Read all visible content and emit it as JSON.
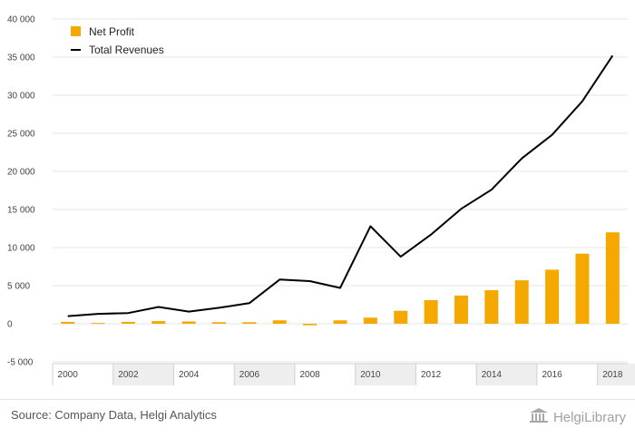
{
  "chart_data": {
    "type": "bar+line",
    "categories": [
      "2000",
      "2001",
      "2002",
      "2003",
      "2004",
      "2005",
      "2006",
      "2007",
      "2008",
      "2009",
      "2010",
      "2011",
      "2012",
      "2013",
      "2014",
      "2015",
      "2016",
      "2017",
      "2018"
    ],
    "x_tick_labels": [
      "2000",
      "2002",
      "2004",
      "2006",
      "2008",
      "2010",
      "2012",
      "2014",
      "2016",
      "2018"
    ],
    "y_ticks": [
      -5000,
      0,
      5000,
      10000,
      15000,
      20000,
      25000,
      30000,
      35000,
      40000
    ],
    "y_tick_labels": [
      "-5 000",
      "0",
      "5 000",
      "10 000",
      "15 000",
      "20 000",
      "25 000",
      "30 000",
      "35 000",
      "40 000"
    ],
    "ylim": [
      -5000,
      40000
    ],
    "grid": true,
    "legend_position": "top-left",
    "series": [
      {
        "name": "Net Profit",
        "type": "bar",
        "color": "#f5a900",
        "values": [
          250,
          100,
          250,
          350,
          300,
          200,
          200,
          450,
          -200,
          450,
          800,
          1700,
          3100,
          3700,
          4400,
          5700,
          7100,
          9200,
          12000
        ]
      },
      {
        "name": "Total Revenues",
        "type": "line",
        "color": "#000000",
        "values": [
          1000,
          1300,
          1400,
          2200,
          1600,
          2100,
          2700,
          5800,
          5600,
          4700,
          12800,
          8800,
          11700,
          15100,
          17600,
          21700,
          24800,
          29200,
          35200
        ]
      }
    ]
  },
  "footer": {
    "source": "Source: Company Data, Helgi Analytics",
    "brand": "HelgiLibrary",
    "logo_icon": "library-building-icon"
  }
}
